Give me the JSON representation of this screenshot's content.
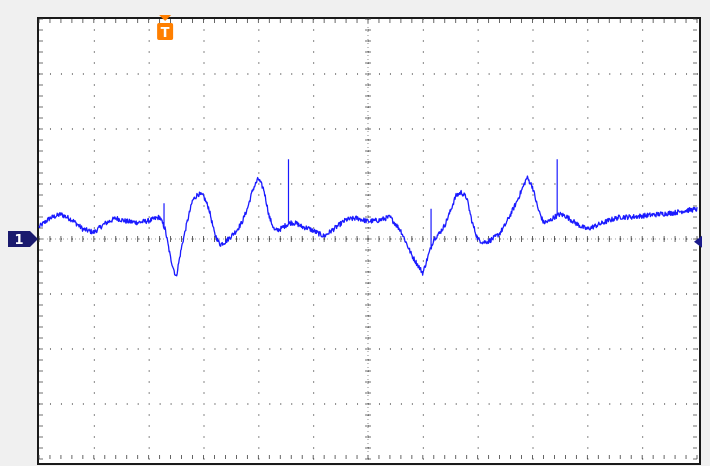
{
  "colors": {
    "trace": "#1a1aff",
    "grid": "#404040",
    "frame": "#1a1a1a",
    "channel_marker": "#1a1a6e",
    "trigger_marker": "#ff7f00",
    "trigger_level_marker": "#1a1a8c"
  },
  "markers": {
    "channel_label": "1",
    "trigger_label": "T"
  },
  "chart_data": {
    "type": "line",
    "grid": {
      "divisions_x": 12,
      "divisions_y": 8,
      "minor_ticks_per_division": 5
    },
    "xlim": [
      0,
      12
    ],
    "ylim": [
      -4,
      4
    ],
    "series": [
      {
        "x": [
          0.0,
          0.2,
          0.4,
          0.6,
          0.8,
          1.0,
          1.2,
          1.4,
          1.6,
          1.8,
          2.0,
          2.2,
          2.3,
          2.4,
          2.5,
          2.6,
          2.7,
          2.8,
          2.9,
          3.0,
          3.1,
          3.2,
          3.3,
          3.4,
          3.5,
          3.6,
          3.7,
          3.8,
          3.9,
          4.0,
          4.1,
          4.2,
          4.3,
          4.4,
          4.5,
          4.6,
          4.7,
          4.8,
          4.9,
          5.0,
          5.2,
          5.4,
          5.6,
          5.8,
          6.0,
          6.2,
          6.4,
          6.6,
          6.8,
          7.0,
          7.1,
          7.2,
          7.3,
          7.4,
          7.5,
          7.6,
          7.7,
          7.8,
          7.9,
          8.0,
          8.1,
          8.2,
          8.3,
          8.4,
          8.5,
          8.6,
          8.7,
          8.8,
          8.9,
          9.0,
          9.1,
          9.2,
          9.3,
          9.4,
          9.5,
          9.6,
          9.7,
          9.8,
          9.9,
          10.0,
          10.2,
          10.4,
          10.6,
          10.8,
          11.0,
          11.2,
          11.4,
          11.6,
          11.8,
          12.0
        ],
        "y": [
          0.22,
          0.38,
          0.45,
          0.35,
          0.18,
          0.12,
          0.28,
          0.38,
          0.32,
          0.3,
          0.33,
          0.4,
          0.18,
          -0.35,
          -0.7,
          -0.15,
          0.3,
          0.7,
          0.82,
          0.78,
          0.55,
          0.1,
          -0.1,
          -0.05,
          0.05,
          0.15,
          0.3,
          0.55,
          0.9,
          1.1,
          0.9,
          0.4,
          0.15,
          0.18,
          0.25,
          0.3,
          0.28,
          0.22,
          0.2,
          0.15,
          0.05,
          0.2,
          0.35,
          0.38,
          0.32,
          0.34,
          0.4,
          0.15,
          -0.3,
          -0.62,
          -0.3,
          0.0,
          0.1,
          0.25,
          0.5,
          0.78,
          0.85,
          0.75,
          0.3,
          0.0,
          -0.06,
          -0.04,
          0.02,
          0.1,
          0.25,
          0.45,
          0.65,
          0.88,
          1.12,
          0.95,
          0.55,
          0.3,
          0.32,
          0.4,
          0.45,
          0.42,
          0.35,
          0.28,
          0.22,
          0.18,
          0.26,
          0.34,
          0.4,
          0.4,
          0.42,
          0.44,
          0.46,
          0.48,
          0.52,
          0.54
        ]
      }
    ],
    "spikes": [
      {
        "x": 4.55,
        "y": 1.45
      },
      {
        "x": 9.45,
        "y": 1.45
      },
      {
        "x": 2.28,
        "y": 0.65
      },
      {
        "x": 7.15,
        "y": 0.55
      }
    ],
    "channel_marker_level": 0.0,
    "trigger_level": -0.05,
    "trigger_position": 2.3
  }
}
